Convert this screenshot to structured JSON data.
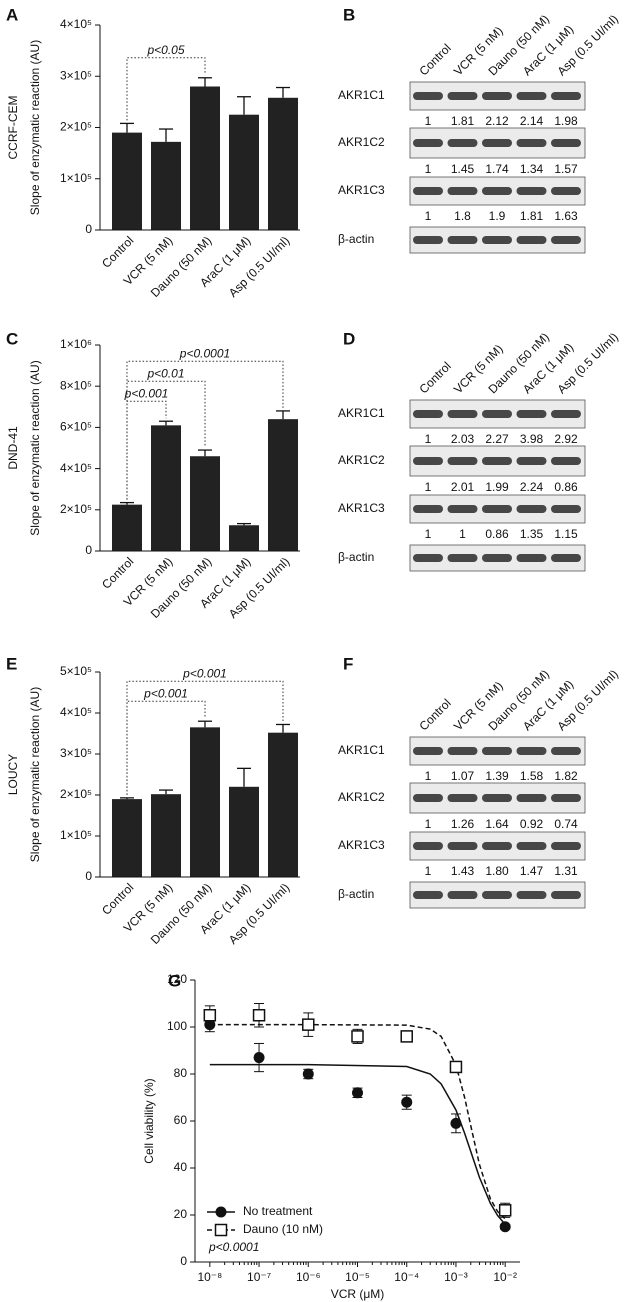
{
  "chart_data": [
    {
      "type": "bar",
      "panel": "A",
      "cell_line": "CCRF-CEM",
      "ylabel": "Slope of enzymatic reaction (AU)",
      "categories": [
        "Control",
        "VCR (5 nM)",
        "Dauno (50 nM)",
        "AraC (1 μM)",
        "Asp (0.5 UI/ml)"
      ],
      "values": [
        190000,
        172000,
        280000,
        225000,
        258000
      ],
      "errors": [
        18000,
        25000,
        17000,
        35000,
        20000
      ],
      "color": "#222222",
      "ylim": [
        0,
        400000
      ],
      "yticks": [
        0,
        {
          "value": 100000,
          "label": "1×10⁵"
        },
        {
          "value": 200000,
          "label": "2×10⁵"
        },
        {
          "value": 300000,
          "label": "3×10⁵"
        },
        {
          "value": 400000,
          "label": "4×10⁵"
        }
      ],
      "annotations": [
        {
          "text": "p<0.05",
          "from": 0,
          "to": 2
        }
      ]
    },
    {
      "type": "blot",
      "panel": "B",
      "lanes": [
        "Control",
        "VCR (5 nM)",
        "Dauno (50 nM)",
        "AraC (1 μM)",
        "Asp (0.5 UI/ml)"
      ],
      "rows": [
        {
          "name": "AKR1C1",
          "values": [
            1,
            1.81,
            2.12,
            2.14,
            1.98
          ]
        },
        {
          "name": "AKR1C2",
          "values": [
            1,
            1.45,
            1.74,
            1.34,
            1.57
          ]
        },
        {
          "name": "AKR1C3",
          "values": [
            1,
            1.8,
            1.9,
            1.81,
            1.63
          ]
        },
        {
          "name": "β-actin"
        }
      ]
    },
    {
      "type": "bar",
      "panel": "C",
      "cell_line": "DND-41",
      "ylabel": "Slope of enzymatic reaction (AU)",
      "categories": [
        "Control",
        "VCR (5 nM)",
        "Dauno (50 nM)",
        "AraC (1 μM)",
        "Asp (0.5 UI/ml)"
      ],
      "values": [
        225000,
        610000,
        460000,
        125000,
        640000
      ],
      "errors": [
        10000,
        20000,
        30000,
        8000,
        40000
      ],
      "color": "#222222",
      "ylim": [
        0,
        1000000
      ],
      "yticks": [
        0,
        {
          "value": 200000,
          "label": "2×10⁵"
        },
        {
          "value": 400000,
          "label": "4×10⁵"
        },
        {
          "value": 600000,
          "label": "6×10⁵"
        },
        {
          "value": 800000,
          "label": "8×10⁵"
        },
        {
          "value": 1000000,
          "label": "1×10⁶"
        }
      ],
      "annotations": [
        {
          "text": "p<0.001",
          "from": 0,
          "to": 1
        },
        {
          "text": "p<0.01",
          "from": 0,
          "to": 2
        },
        {
          "text": "p<0.0001",
          "from": 0,
          "to": 4
        }
      ]
    },
    {
      "type": "blot",
      "panel": "D",
      "lanes": [
        "Control",
        "VCR (5 nM)",
        "Dauno (50 nM)",
        "AraC (1 μM)",
        "Asp (0.5 UI/ml)"
      ],
      "rows": [
        {
          "name": "AKR1C1",
          "values": [
            1,
            2.03,
            2.27,
            3.98,
            2.92
          ]
        },
        {
          "name": "AKR1C2",
          "values": [
            1,
            2.01,
            1.99,
            2.24,
            0.86
          ]
        },
        {
          "name": "AKR1C3",
          "values": [
            1,
            1,
            0.86,
            1.35,
            1.15
          ]
        },
        {
          "name": "β-actin"
        }
      ]
    },
    {
      "type": "bar",
      "panel": "E",
      "cell_line": "LOUCY",
      "ylabel": "Slope of enzymatic reaction (AU)",
      "categories": [
        "Control",
        "VCR (5 nM)",
        "Dauno (50 nM)",
        "AraC (1 μM)",
        "Asp (0.5 UI/ml)"
      ],
      "values": [
        190000,
        202000,
        365000,
        220000,
        352000
      ],
      "errors": [
        3000,
        10000,
        15000,
        45000,
        20000
      ],
      "color": "#222222",
      "ylim": [
        0,
        500000
      ],
      "yticks": [
        0,
        {
          "value": 100000,
          "label": "1×10⁵"
        },
        {
          "value": 200000,
          "label": "2×10⁵"
        },
        {
          "value": 300000,
          "label": "3×10⁵"
        },
        {
          "value": 400000,
          "label": "4×10⁵"
        },
        {
          "value": 500000,
          "label": "5×10⁵"
        }
      ],
      "annotations": [
        {
          "text": "p<0.001",
          "from": 0,
          "to": 2
        },
        {
          "text": "p<0.001",
          "from": 0,
          "to": 4
        }
      ]
    },
    {
      "type": "blot",
      "panel": "F",
      "lanes": [
        "Control",
        "VCR (5 nM)",
        "Dauno (50 nM)",
        "AraC (1 μM)",
        "Asp (0.5 UI/ml)"
      ],
      "rows": [
        {
          "name": "AKR1C1",
          "values": [
            1,
            1.07,
            1.39,
            1.58,
            1.82
          ]
        },
        {
          "name": "AKR1C2",
          "values": [
            1,
            1.26,
            1.64,
            0.92,
            0.74
          ]
        },
        {
          "name": "AKR1C3",
          "values": [
            1,
            1.43,
            1.8,
            1.47,
            1.31
          ],
          "value_labels": [
            "1",
            "1.43",
            "1.80",
            "1.47",
            "1.31"
          ]
        },
        {
          "name": "β-actin"
        }
      ]
    },
    {
      "type": "scatter",
      "panel": "G",
      "xlabel": "VCR (μM)",
      "ylabel": "Cell viability (%)",
      "log_x": true,
      "x": [
        1e-08,
        1e-07,
        1e-06,
        1e-05,
        0.0001,
        0.001,
        0.01
      ],
      "xlim": [
        5e-09,
        0.02
      ],
      "xticks": [
        {
          "value": 1e-08,
          "label": "10⁻⁸"
        },
        {
          "value": 1e-07,
          "label": "10⁻⁷"
        },
        {
          "value": 1e-06,
          "label": "10⁻⁶"
        },
        {
          "value": 1e-05,
          "label": "10⁻⁵"
        },
        {
          "value": 0.0001,
          "label": "10⁻⁴"
        },
        {
          "value": 0.001,
          "label": "10⁻³"
        },
        {
          "value": 0.01,
          "label": "10⁻²"
        }
      ],
      "ylim": [
        0,
        120
      ],
      "yticks": [
        0,
        20,
        40,
        60,
        80,
        100,
        120
      ],
      "legend": "lower left",
      "annotation": "p<0.0001",
      "series": [
        {
          "name": "No treatment",
          "color": "#111111",
          "marker": "circle",
          "dash": "solid",
          "values": [
            101,
            87,
            80,
            72,
            68,
            59,
            15
          ],
          "errors": [
            3,
            6,
            2,
            2,
            3,
            4,
            1
          ],
          "fit": {
            "x": [
              1e-08,
              1e-06,
              0.0001,
              0.0003,
              0.0005,
              0.001,
              0.0015,
              0.002,
              0.003,
              0.005,
              0.007,
              0.01
            ],
            "values": [
              84,
              84,
              83.2,
              80,
              75.8,
              64.7,
              54.8,
              47,
              36,
              25,
              19.8,
              16
            ]
          }
        },
        {
          "name": "Dauno (10 nM)",
          "color": "#111111",
          "marker": "square",
          "dash": "dashed",
          "values": [
            105,
            105,
            101,
            96,
            96,
            83,
            22
          ],
          "errors": [
            4,
            5,
            5,
            3,
            2,
            1,
            3
          ],
          "fit": {
            "x": [
              1e-08,
              1e-06,
              0.0001,
              0.0003,
              0.0005,
              0.001,
              0.0015,
              0.002,
              0.003,
              0.005,
              0.007,
              0.01
            ],
            "values": [
              101,
              101,
              100.8,
              99.1,
              96,
              83.8,
              70,
              58,
              41.5,
              26.9,
              21.5,
              18.3
            ]
          }
        }
      ]
    }
  ]
}
